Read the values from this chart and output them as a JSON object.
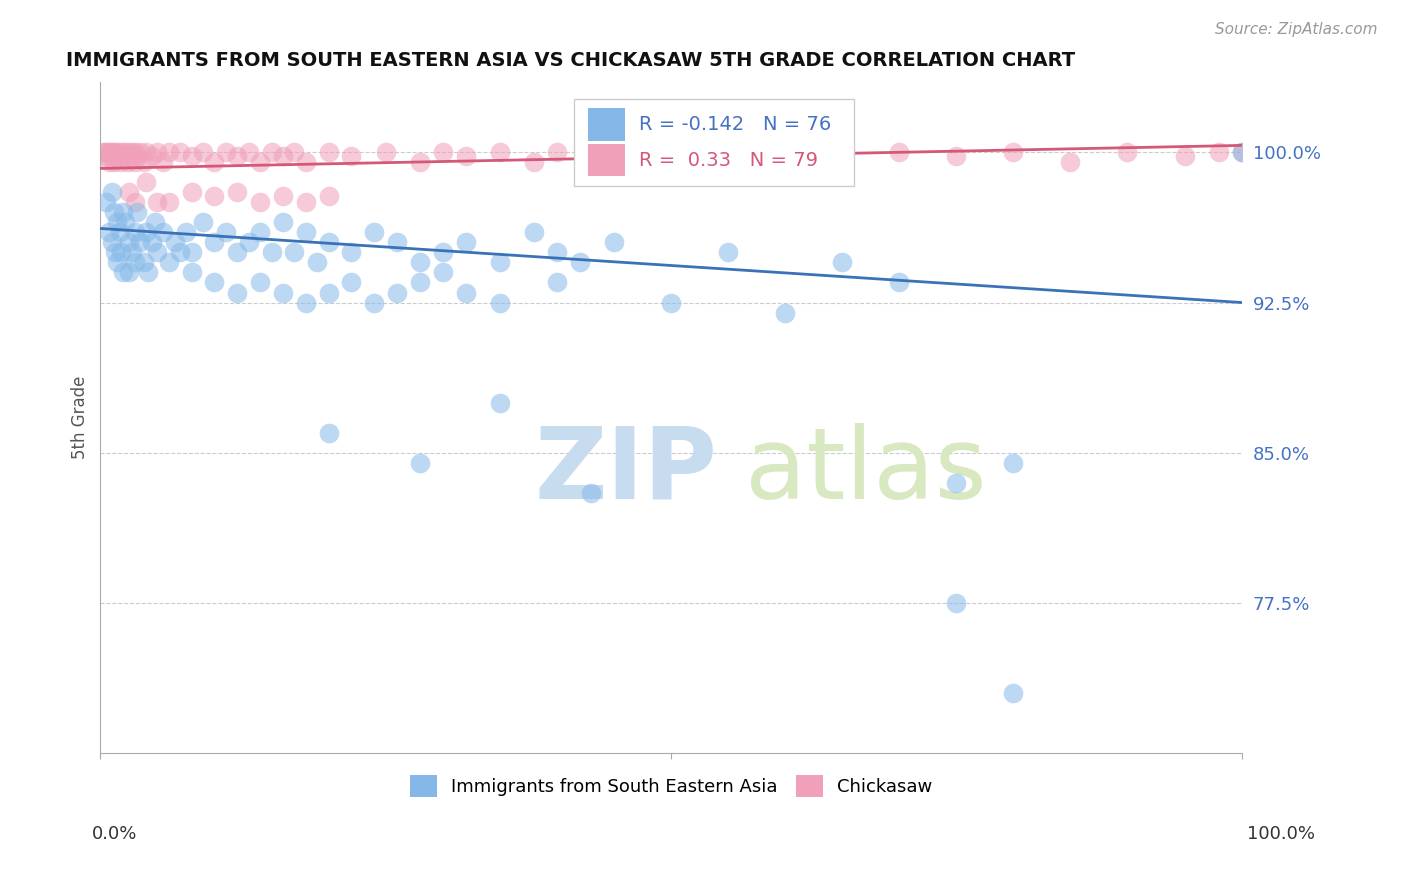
{
  "title": "IMMIGRANTS FROM SOUTH EASTERN ASIA VS CHICKASAW 5TH GRADE CORRELATION CHART",
  "source": "Source: ZipAtlas.com",
  "ylabel": "5th Grade",
  "xlim": [
    0.0,
    100.0
  ],
  "ylim": [
    70.0,
    103.5
  ],
  "yticks": [
    77.5,
    85.0,
    92.5,
    100.0
  ],
  "ytick_labels": [
    "77.5%",
    "85.0%",
    "92.5%",
    "100.0%"
  ],
  "blue_R": -0.142,
  "blue_N": 76,
  "pink_R": 0.33,
  "pink_N": 79,
  "blue_color": "#85B8E8",
  "pink_color": "#F0A0B8",
  "blue_line_color": "#3A72B8",
  "pink_line_color": "#D45878",
  "watermark_zip": "ZIP",
  "watermark_atlas": "atlas",
  "watermark_color": "#C8DCF0",
  "blue_line_x0": 0,
  "blue_line_x1": 100,
  "blue_line_y0": 96.2,
  "blue_line_y1": 92.5,
  "pink_line_x0": 0,
  "pink_line_x1": 100,
  "pink_line_y0": 99.2,
  "pink_line_y1": 100.35,
  "blue_scatter_x": [
    0.5,
    0.8,
    1.0,
    1.0,
    1.2,
    1.3,
    1.5,
    1.5,
    1.7,
    1.8,
    2.0,
    2.0,
    2.2,
    2.5,
    2.5,
    2.8,
    3.0,
    3.0,
    3.2,
    3.5,
    3.8,
    4.0,
    4.2,
    4.5,
    4.8,
    5.0,
    5.5,
    6.0,
    6.5,
    7.0,
    7.5,
    8.0,
    9.0,
    10.0,
    11.0,
    12.0,
    13.0,
    14.0,
    15.0,
    16.0,
    17.0,
    18.0,
    19.0,
    20.0,
    22.0,
    24.0,
    26.0,
    28.0,
    30.0,
    32.0,
    35.0,
    38.0,
    40.0,
    42.0,
    45.0,
    50.0,
    55.0,
    60.0,
    65.0,
    70.0,
    75.0,
    80.0,
    100.0
  ],
  "blue_scatter_y": [
    97.5,
    96.0,
    98.0,
    95.5,
    97.0,
    95.0,
    96.5,
    94.5,
    96.0,
    95.0,
    97.0,
    94.0,
    96.5,
    95.5,
    94.0,
    95.0,
    96.0,
    94.5,
    97.0,
    95.5,
    94.5,
    96.0,
    94.0,
    95.5,
    96.5,
    95.0,
    96.0,
    94.5,
    95.5,
    95.0,
    96.0,
    95.0,
    96.5,
    95.5,
    96.0,
    95.0,
    95.5,
    96.0,
    95.0,
    96.5,
    95.0,
    96.0,
    94.5,
    95.5,
    95.0,
    96.0,
    95.5,
    94.5,
    95.0,
    95.5,
    94.5,
    96.0,
    95.0,
    94.5,
    95.5,
    92.5,
    95.0,
    92.0,
    94.5,
    93.5,
    83.5,
    84.5,
    100.0
  ],
  "blue_scatter_x2": [
    8.0,
    10.0,
    12.0,
    14.0,
    16.0,
    18.0,
    20.0,
    22.0,
    24.0,
    26.0,
    28.0,
    30.0,
    32.0,
    35.0,
    40.0
  ],
  "blue_scatter_y2": [
    94.0,
    93.5,
    93.0,
    93.5,
    93.0,
    92.5,
    93.0,
    93.5,
    92.5,
    93.0,
    93.5,
    94.0,
    93.0,
    92.5,
    93.5
  ],
  "blue_outliers_x": [
    20.0,
    28.0,
    35.0,
    43.0,
    75.0,
    80.0
  ],
  "blue_outliers_y": [
    86.0,
    84.5,
    87.5,
    83.0,
    77.5,
    73.0
  ],
  "pink_scatter_x": [
    0.2,
    0.4,
    0.5,
    0.6,
    0.8,
    0.8,
    1.0,
    1.0,
    1.2,
    1.2,
    1.4,
    1.5,
    1.6,
    1.8,
    2.0,
    2.0,
    2.2,
    2.4,
    2.5,
    2.6,
    2.8,
    3.0,
    3.0,
    3.2,
    3.5,
    3.8,
    4.0,
    4.5,
    5.0,
    5.5,
    6.0,
    7.0,
    8.0,
    9.0,
    10.0,
    11.0,
    12.0,
    13.0,
    14.0,
    15.0,
    16.0,
    17.0,
    18.0,
    20.0,
    22.0,
    25.0,
    28.0,
    30.0,
    32.0,
    35.0,
    38.0,
    40.0,
    50.0,
    60.0,
    65.0,
    70.0,
    75.0,
    80.0,
    85.0,
    90.0,
    95.0,
    98.0,
    100.0
  ],
  "pink_scatter_y": [
    100.0,
    100.0,
    99.8,
    100.0,
    100.0,
    99.5,
    100.0,
    99.8,
    100.0,
    99.5,
    100.0,
    99.8,
    100.0,
    99.5,
    100.0,
    99.8,
    100.0,
    99.5,
    100.0,
    99.8,
    100.0,
    99.5,
    100.0,
    99.8,
    100.0,
    99.5,
    100.0,
    99.8,
    100.0,
    99.5,
    100.0,
    100.0,
    99.8,
    100.0,
    99.5,
    100.0,
    99.8,
    100.0,
    99.5,
    100.0,
    99.8,
    100.0,
    99.5,
    100.0,
    99.8,
    100.0,
    99.5,
    100.0,
    99.8,
    100.0,
    99.5,
    100.0,
    99.8,
    100.0,
    99.5,
    100.0,
    99.8,
    100.0,
    99.5,
    100.0,
    99.8,
    100.0,
    100.0
  ],
  "pink_scatter_x2": [
    2.5,
    3.0,
    4.0,
    5.0,
    6.0,
    8.0,
    10.0,
    12.0,
    14.0,
    16.0,
    18.0,
    20.0
  ],
  "pink_scatter_y2": [
    98.0,
    97.5,
    98.5,
    97.5,
    97.5,
    98.0,
    97.8,
    98.0,
    97.5,
    97.8,
    97.5,
    97.8
  ]
}
